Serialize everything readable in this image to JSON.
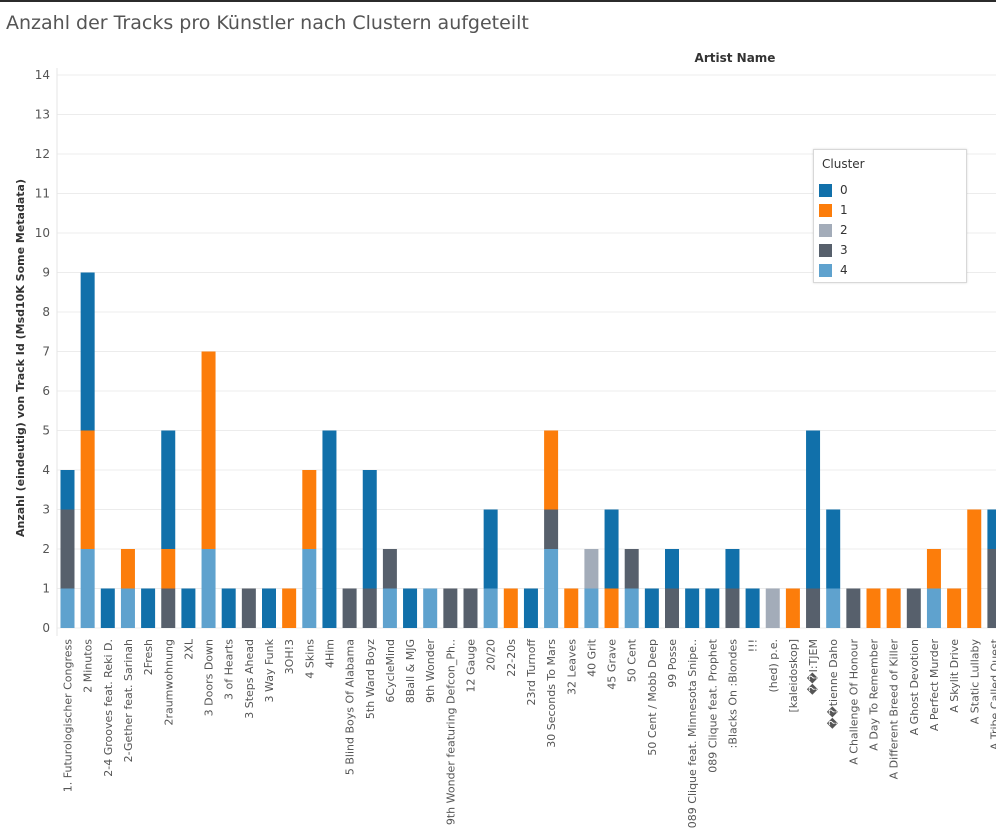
{
  "title": "Anzahl der Tracks pro Künstler nach Clustern aufgeteilt",
  "chart_data": {
    "type": "bar",
    "stacked": true,
    "title": "Anzahl der Tracks pro Künstler nach Clustern aufgeteilt",
    "header_label": "Artist Name",
    "ylabel": "Anzahl (eindeutig) von Track Id (Msd10K Some Metadata)",
    "xlabel": "",
    "ylim": [
      0,
      14
    ],
    "yticks": [
      0,
      1,
      2,
      3,
      4,
      5,
      6,
      7,
      8,
      9,
      10,
      11,
      12,
      13,
      14
    ],
    "grid": true,
    "legend_position": "top-right",
    "legend_title": "Cluster",
    "categories": [
      "1. Futurologischer Congress",
      "2 Minutos",
      "2-4 Grooves feat. Reki D.",
      "2-Gether feat. Sarinah",
      "2Fresh",
      "2raumwohnung",
      "2XL",
      "3 Doors Down",
      "3 of Hearts",
      "3 Steps Ahead",
      "3 Way Funk",
      "3OH!3",
      "4 Skins",
      "4Him",
      "5 Blind Boys Of Alabama",
      "5th Ward Boyz",
      "6CycleMind",
      "8Ball & MJG",
      "9th Wonder",
      "9th Wonder featuring Defcon_Ph..",
      "12 Gauge",
      "20/20",
      "22-20s",
      "23rd Turnoff",
      "30 Seconds To Mars",
      "32 Leaves",
      "40 Grit",
      "45 Grave",
      "50 Cent",
      "50 Cent / Mobb Deep",
      "99 Posse",
      "089 Clique feat. Minnesota Snipe..",
      "089 Clique feat. Prophet",
      ":Blacks On :Blondes",
      "!!!",
      "(hed) p.e.",
      "[kaleidoskop]",
      "��I:TJEM",
      "��tienne Daho",
      "A Challenge Of Honour",
      "A Day To Remember",
      "A Different Breed of Killer",
      "A Ghost Devotion",
      "A Perfect Murder",
      "A Skylit Drive",
      "A Static Lullaby",
      "A Tribe Called Quest"
    ],
    "series": [
      {
        "name": "4",
        "color": "#5fa2ce",
        "values": [
          1,
          2,
          0,
          1,
          0,
          0,
          0,
          2,
          0,
          0,
          0,
          0,
          2,
          0,
          0,
          0,
          1,
          0,
          1,
          0,
          0,
          1,
          0,
          0,
          2,
          0,
          1,
          0,
          1,
          0,
          0,
          0,
          0,
          0,
          0,
          0,
          0,
          0,
          1,
          0,
          0,
          0,
          0,
          1,
          0,
          0,
          0
        ]
      },
      {
        "name": "3",
        "color": "#57606c",
        "values": [
          2,
          0,
          0,
          0,
          0,
          1,
          0,
          0,
          0,
          1,
          0,
          0,
          0,
          0,
          1,
          1,
          1,
          0,
          0,
          1,
          1,
          0,
          0,
          0,
          1,
          0,
          0,
          0,
          1,
          0,
          1,
          0,
          0,
          1,
          0,
          0,
          0,
          1,
          0,
          1,
          0,
          0,
          1,
          0,
          0,
          0,
          2
        ]
      },
      {
        "name": "2",
        "color": "#a3acb9",
        "values": [
          0,
          0,
          0,
          0,
          0,
          0,
          0,
          0,
          0,
          0,
          0,
          0,
          0,
          0,
          0,
          0,
          0,
          0,
          0,
          0,
          0,
          0,
          0,
          0,
          0,
          0,
          1,
          0,
          0,
          0,
          0,
          0,
          0,
          0,
          0,
          1,
          0,
          0,
          0,
          0,
          0,
          0,
          0,
          0,
          0,
          0,
          0
        ]
      },
      {
        "name": "1",
        "color": "#fc7d0b",
        "values": [
          0,
          3,
          0,
          1,
          0,
          1,
          0,
          5,
          0,
          0,
          0,
          1,
          2,
          0,
          0,
          0,
          0,
          0,
          0,
          0,
          0,
          0,
          1,
          0,
          2,
          1,
          0,
          1,
          0,
          0,
          0,
          0,
          0,
          0,
          0,
          0,
          1,
          0,
          0,
          0,
          1,
          1,
          0,
          1,
          1,
          3,
          0
        ]
      },
      {
        "name": "0",
        "color": "#1170aa",
        "values": [
          1,
          4,
          1,
          0,
          1,
          3,
          1,
          0,
          1,
          0,
          1,
          0,
          0,
          5,
          0,
          3,
          0,
          1,
          0,
          0,
          0,
          2,
          0,
          1,
          0,
          0,
          0,
          2,
          0,
          1,
          1,
          1,
          1,
          1,
          1,
          0,
          0,
          4,
          2,
          0,
          0,
          0,
          0,
          0,
          0,
          0,
          1
        ]
      }
    ],
    "legend": [
      {
        "label": "0",
        "color": "#1170aa"
      },
      {
        "label": "1",
        "color": "#fc7d0b"
      },
      {
        "label": "2",
        "color": "#a3acb9"
      },
      {
        "label": "3",
        "color": "#57606c"
      },
      {
        "label": "4",
        "color": "#5fa2ce"
      }
    ]
  }
}
